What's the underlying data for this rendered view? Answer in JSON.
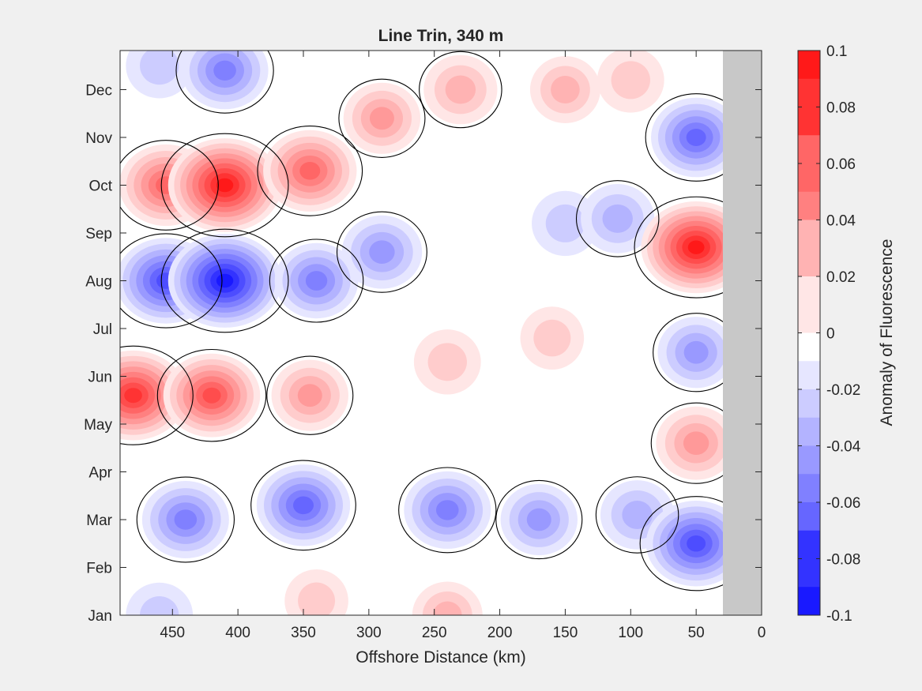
{
  "chart_data": {
    "type": "heatmap",
    "title": "Line Trin, 340 m",
    "xlabel": "Offshore Distance (km)",
    "ylabel": "",
    "xlim": [
      490,
      0
    ],
    "x_reversed": true,
    "x_ticks": [
      450,
      400,
      350,
      300,
      250,
      200,
      150,
      100,
      50,
      0
    ],
    "y_ticks": [
      "Jan",
      "Feb",
      "Mar",
      "Apr",
      "May",
      "Jun",
      "Jul",
      "Aug",
      "Sep",
      "Oct",
      "Nov",
      "Dec"
    ],
    "no_data_region_km": [
      30,
      0
    ],
    "colorbar": {
      "label": "Anomaly of Fluorescence",
      "range": [
        -0.1,
        0.1
      ],
      "ticks": [
        "0.1",
        "0.08",
        "0.06",
        "0.04",
        "0.02",
        "0",
        "-0.02",
        "-0.04",
        "-0.06",
        "-0.08",
        "-0.1"
      ],
      "levels": 20,
      "colors": {
        "negative": "#0000ff",
        "positive": "#ff0000",
        "neutral": "#ffffff"
      }
    },
    "zero_contour": true,
    "anomaly_features": [
      {
        "x_km": 455,
        "month": 10.0,
        "value": 0.06
      },
      {
        "x_km": 410,
        "month": 10.0,
        "value": 0.09
      },
      {
        "x_km": 345,
        "month": 10.3,
        "value": 0.06
      },
      {
        "x_km": 290,
        "month": 11.4,
        "value": 0.035
      },
      {
        "x_km": 230,
        "month": 12.0,
        "value": 0.03
      },
      {
        "x_km": 150,
        "month": 12.0,
        "value": 0.025
      },
      {
        "x_km": 100,
        "month": 12.2,
        "value": 0.02
      },
      {
        "x_km": 460,
        "month": 12.5,
        "value": -0.02
      },
      {
        "x_km": 410,
        "month": 12.4,
        "value": -0.05
      },
      {
        "x_km": 50,
        "month": 11.0,
        "value": -0.055
      },
      {
        "x_km": 290,
        "month": 8.6,
        "value": -0.04
      },
      {
        "x_km": 150,
        "month": 9.2,
        "value": -0.02
      },
      {
        "x_km": 110,
        "month": 9.3,
        "value": -0.03
      },
      {
        "x_km": 50,
        "month": 8.7,
        "value": 0.085
      },
      {
        "x_km": 455,
        "month": 8.0,
        "value": -0.07
      },
      {
        "x_km": 410,
        "month": 8.0,
        "value": -0.09
      },
      {
        "x_km": 340,
        "month": 8.0,
        "value": -0.045
      },
      {
        "x_km": 50,
        "month": 6.5,
        "value": -0.035
      },
      {
        "x_km": 240,
        "month": 6.3,
        "value": 0.02
      },
      {
        "x_km": 160,
        "month": 6.8,
        "value": 0.015
      },
      {
        "x_km": 480,
        "month": 5.6,
        "value": 0.08
      },
      {
        "x_km": 420,
        "month": 5.6,
        "value": 0.065
      },
      {
        "x_km": 345,
        "month": 5.6,
        "value": 0.035
      },
      {
        "x_km": 50,
        "month": 4.6,
        "value": 0.04
      },
      {
        "x_km": 440,
        "month": 3.0,
        "value": -0.05
      },
      {
        "x_km": 350,
        "month": 3.3,
        "value": -0.06
      },
      {
        "x_km": 240,
        "month": 3.2,
        "value": -0.05
      },
      {
        "x_km": 170,
        "month": 3.0,
        "value": -0.035
      },
      {
        "x_km": 95,
        "month": 3.1,
        "value": -0.03
      },
      {
        "x_km": 50,
        "month": 2.5,
        "value": -0.07
      },
      {
        "x_km": 460,
        "month": 1.0,
        "value": -0.02
      },
      {
        "x_km": 340,
        "month": 1.3,
        "value": 0.015
      },
      {
        "x_km": 240,
        "month": 1.0,
        "value": 0.025
      }
    ]
  }
}
